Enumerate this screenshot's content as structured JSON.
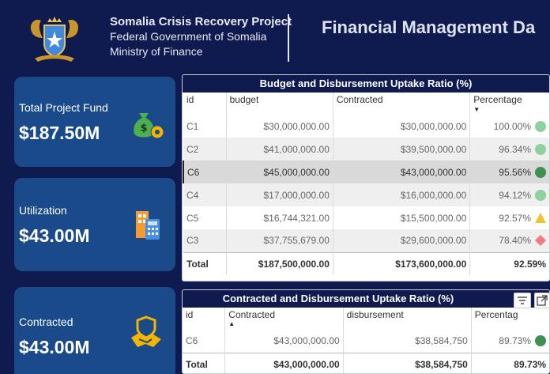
{
  "header": {
    "org_line1": "Somalia Crisis Recovery Project",
    "org_line2": "Federal Government of Somalia",
    "org_line3": "Ministry of Finance",
    "page_title": "Financial Management Da",
    "emblem_icon": "somalia-coat-of-arms"
  },
  "kpis": [
    {
      "label": "Total Project Fund",
      "value": "$187.50M",
      "icon": "money-bag-gear-icon"
    },
    {
      "label": "Utilization",
      "value": "$43.00M",
      "icon": "building-calculator-icon"
    },
    {
      "label": "Contracted",
      "value": "$43.00M",
      "icon": "handshake-shield-icon"
    }
  ],
  "budget_table": {
    "title": "Budget and Disbursement Uptake Ratio (%)",
    "columns": [
      "id",
      "budget",
      "Contracted",
      "Percentage"
    ],
    "rows": [
      {
        "id": "C1",
        "budget": "$30,000,000.00",
        "contracted": "$30,000,000.00",
        "pct": "100.00%",
        "status": "light-green-circle"
      },
      {
        "id": "C2",
        "budget": "$41,000,000.00",
        "contracted": "$39,500,000.00",
        "pct": "96.34%",
        "status": "light-green-circle"
      },
      {
        "id": "C6",
        "budget": "$45,000,000.00",
        "contracted": "$43,000,000.00",
        "pct": "95.56%",
        "status": "dark-green-circle"
      },
      {
        "id": "C4",
        "budget": "$17,000,000.00",
        "contracted": "$16,000,000.00",
        "pct": "94.12%",
        "status": "light-green-circle"
      },
      {
        "id": "C5",
        "budget": "$16,744,321.00",
        "contracted": "$15,500,000.00",
        "pct": "92.57%",
        "status": "yellow-triangle"
      },
      {
        "id": "C3",
        "budget": "$37,755,679.00",
        "contracted": "$29,600,000.00",
        "pct": "78.40%",
        "status": "red-diamond"
      }
    ],
    "total": {
      "label": "Total",
      "budget": "$187,500,000.00",
      "contracted": "$173,600,000.00",
      "pct": "92.59%"
    }
  },
  "contract_table": {
    "title": "Contracted and Disbursement Uptake Ratio (%)",
    "columns": [
      "id",
      "Contracted",
      "disbursement",
      "Percentag"
    ],
    "rows": [
      {
        "id": "C6",
        "contracted": "$43,000,000.00",
        "disbursement": "$38,584,750",
        "pct": "89.73%",
        "status": "dark-green-circle"
      }
    ],
    "total": {
      "label": "Total",
      "contracted": "$43,000,000.00",
      "disbursement": "$38,584,750",
      "pct": "89.73%"
    }
  },
  "colors": {
    "background": "#0f1a4e",
    "kpi_card": "#1a4a8a",
    "light_green": "#8fd19e",
    "dark_green": "#3f8f4f",
    "yellow": "#f1c232",
    "red": "#f27b82"
  }
}
